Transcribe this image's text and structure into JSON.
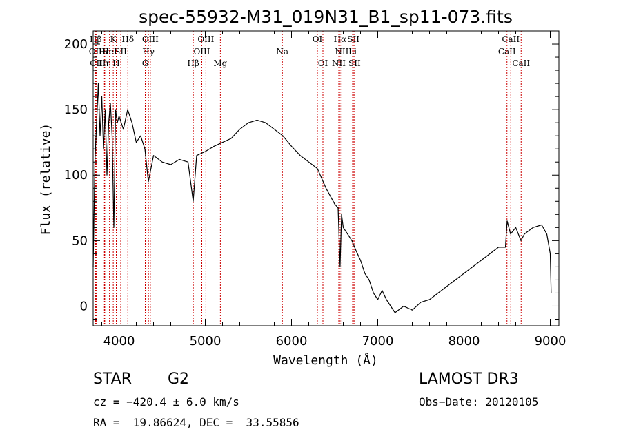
{
  "chart_data": {
    "type": "line",
    "title": "spec-55932-M31_019N31_B1_sp11-073.fits",
    "xlabel": "Wavelength (Å)",
    "ylabel": "Flux (relative)",
    "xlim": [
      3700,
      9100
    ],
    "ylim": [
      -15,
      210
    ],
    "xticks": [
      4000,
      5000,
      6000,
      7000,
      8000,
      9000
    ],
    "yticks": [
      0,
      50,
      100,
      150,
      200
    ],
    "series": [
      {
        "name": "flux",
        "x": [
          3700,
          3720,
          3740,
          3760,
          3780,
          3800,
          3820,
          3840,
          3860,
          3880,
          3900,
          3920,
          3940,
          3960,
          3980,
          4000,
          4050,
          4100,
          4150,
          4200,
          4250,
          4300,
          4340,
          4400,
          4500,
          4600,
          4700,
          4800,
          4860,
          4900,
          5000,
          5100,
          5200,
          5300,
          5400,
          5500,
          5600,
          5700,
          5800,
          5900,
          6000,
          6100,
          6200,
          6300,
          6400,
          6500,
          6540,
          6563,
          6580,
          6600,
          6650,
          6700,
          6750,
          6800,
          6850,
          6900,
          6950,
          7000,
          7050,
          7100,
          7200,
          7300,
          7400,
          7500,
          7600,
          7700,
          7800,
          7900,
          8000,
          8100,
          8200,
          8300,
          8400,
          8480,
          8500,
          8540,
          8600,
          8660,
          8700,
          8800,
          8900,
          8960,
          9000,
          9010
        ],
        "y": [
          30,
          110,
          140,
          170,
          130,
          160,
          120,
          150,
          100,
          140,
          155,
          130,
          60,
          150,
          140,
          145,
          135,
          150,
          140,
          125,
          130,
          120,
          95,
          115,
          110,
          108,
          112,
          110,
          80,
          115,
          118,
          122,
          125,
          128,
          135,
          140,
          142,
          140,
          135,
          130,
          122,
          115,
          110,
          105,
          90,
          78,
          75,
          30,
          70,
          60,
          55,
          50,
          42,
          35,
          25,
          20,
          10,
          5,
          12,
          5,
          -5,
          0,
          -3,
          3,
          5,
          10,
          15,
          20,
          25,
          30,
          35,
          40,
          45,
          45,
          65,
          55,
          60,
          50,
          55,
          60,
          62,
          55,
          40,
          10
        ]
      }
    ],
    "line_marks": [
      {
        "label": "Hβ",
        "lambda": 3730,
        "row": 0
      },
      {
        "label": "OII",
        "lambda": 3727,
        "row": 1
      },
      {
        "label": "CII",
        "lambda": 3737,
        "row": 2
      },
      {
        "label": "Hε",
        "lambda": 3830,
        "row": 1
      },
      {
        "label": "Hη",
        "lambda": 3835,
        "row": 2
      },
      {
        "label": "K",
        "lambda": 3933,
        "row": 0
      },
      {
        "label": "HeI",
        "lambda": 3889,
        "row": 1
      },
      {
        "label": "SII",
        "lambda": 4020,
        "row": 1
      },
      {
        "label": "H",
        "lambda": 3968,
        "row": 2
      },
      {
        "label": "Hδ",
        "lambda": 4102,
        "row": 0
      },
      {
        "label": "OIII",
        "lambda": 4363,
        "row": 0
      },
      {
        "label": "Hγ",
        "lambda": 4341,
        "row": 1
      },
      {
        "label": "G",
        "lambda": 4304,
        "row": 2
      },
      {
        "label": "OIII",
        "lambda": 5007,
        "row": 0
      },
      {
        "label": "OIII",
        "lambda": 4960,
        "row": 1
      },
      {
        "label": "Hβ",
        "lambda": 4861,
        "row": 2
      },
      {
        "label": "Mg",
        "lambda": 5175,
        "row": 2
      },
      {
        "label": "Na",
        "lambda": 5894,
        "row": 1
      },
      {
        "label": "OI",
        "lambda": 6300,
        "row": 0
      },
      {
        "label": "OI",
        "lambda": 6364,
        "row": 2
      },
      {
        "label": "Hα",
        "lambda": 6563,
        "row": 0
      },
      {
        "label": "NII",
        "lambda": 6583,
        "row": 1
      },
      {
        "label": "NII",
        "lambda": 6548,
        "row": 2
      },
      {
        "label": "SII",
        "lambda": 6717,
        "row": 0
      },
      {
        "label": "Li",
        "lambda": 6708,
        "row": 1
      },
      {
        "label": "SII",
        "lambda": 6731,
        "row": 2
      },
      {
        "label": "CaII",
        "lambda": 8542,
        "row": 0
      },
      {
        "label": "CaII",
        "lambda": 8498,
        "row": 1
      },
      {
        "label": "CaII",
        "lambda": 8662,
        "row": 2
      }
    ]
  },
  "info": {
    "object_class": "STAR",
    "subclass": "G2",
    "survey": "LAMOST DR3",
    "cz": "cz = −420.4 ± 6.0 km/s",
    "obs_date": "Obs−Date: 20120105",
    "coords": "RA =  19.86624, DEC =  33.55856"
  },
  "colors": {
    "line": "#000000",
    "marker": "#cc0000"
  }
}
